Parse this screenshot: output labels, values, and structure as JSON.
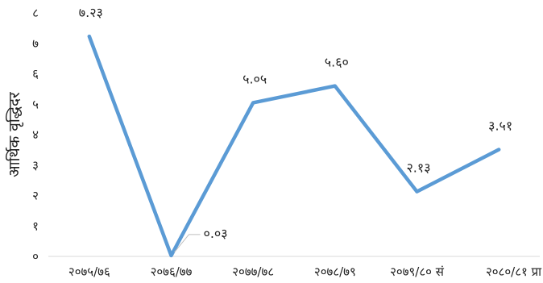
{
  "chart_data": {
    "type": "line",
    "ylabel": "आर्थिक वृद्धिदर",
    "ylim": [
      0,
      8
    ],
    "y_ticks": [
      "०",
      "१",
      "२",
      "३",
      "४",
      "५",
      "६",
      "७",
      "८"
    ],
    "categories": [
      "२०७५/७६",
      "२०७६/७७",
      "२०७७/७८",
      "२०७८/७९",
      "२०७९/८० सं",
      "२०८०/८१ प्रा"
    ],
    "values": [
      7.23,
      0.03,
      5.05,
      5.6,
      2.13,
      3.51
    ],
    "data_labels": [
      "७.२३",
      "०.०३",
      "५.०५",
      "५.६०",
      "२.१३",
      "३.५१"
    ],
    "grid": false,
    "line_color": "#5b9bd5"
  }
}
